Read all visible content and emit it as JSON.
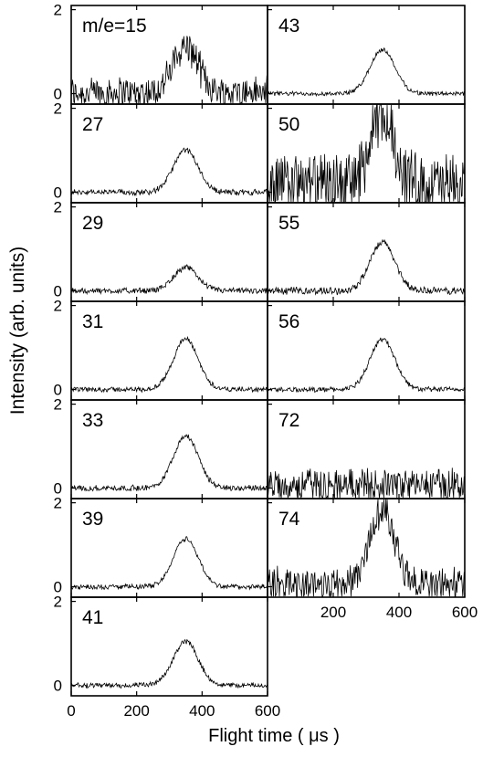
{
  "chart_data": {
    "type": "line",
    "ylabel": "Intensity (arb. units)",
    "xlabel": "Flight time ( μs )",
    "xlim": [
      0,
      600
    ],
    "ylim": [
      -0.25,
      2.1
    ],
    "x_ticks": [
      0,
      200,
      400,
      600
    ],
    "right_x_ticks": [
      200,
      400,
      600
    ],
    "y_ticks": [
      0,
      2
    ],
    "grid": false,
    "legend": "none",
    "peak_center": 350,
    "peak_width": 38,
    "panels": [
      {
        "label": "m/e=15",
        "peak": 1.1,
        "noise": 0.45,
        "base": 0.05
      },
      {
        "label": "27",
        "peak": 1.0,
        "noise": 0.08,
        "base": 0.0
      },
      {
        "label": "29",
        "peak": 0.55,
        "noise": 0.08,
        "base": 0.0
      },
      {
        "label": "31",
        "peak": 1.2,
        "noise": 0.07,
        "base": 0.0
      },
      {
        "label": "33",
        "peak": 1.25,
        "noise": 0.08,
        "base": 0.0
      },
      {
        "label": "39",
        "peak": 1.15,
        "noise": 0.07,
        "base": 0.0
      },
      {
        "label": "41",
        "peak": 1.05,
        "noise": 0.07,
        "base": 0.0
      },
      {
        "label": "43",
        "peak": 1.05,
        "noise": 0.06,
        "base": 0.0
      },
      {
        "label": "50",
        "peak": 1.6,
        "noise": 0.9,
        "base": 0.3
      },
      {
        "label": "55",
        "peak": 1.15,
        "noise": 0.1,
        "base": 0.0
      },
      {
        "label": "56",
        "peak": 1.2,
        "noise": 0.07,
        "base": 0.0
      },
      {
        "label": "72",
        "peak": 0.0,
        "noise": 0.45,
        "base": 0.15
      },
      {
        "label": "74",
        "peak": 1.8,
        "noise": 0.5,
        "base": 0.1
      }
    ]
  }
}
